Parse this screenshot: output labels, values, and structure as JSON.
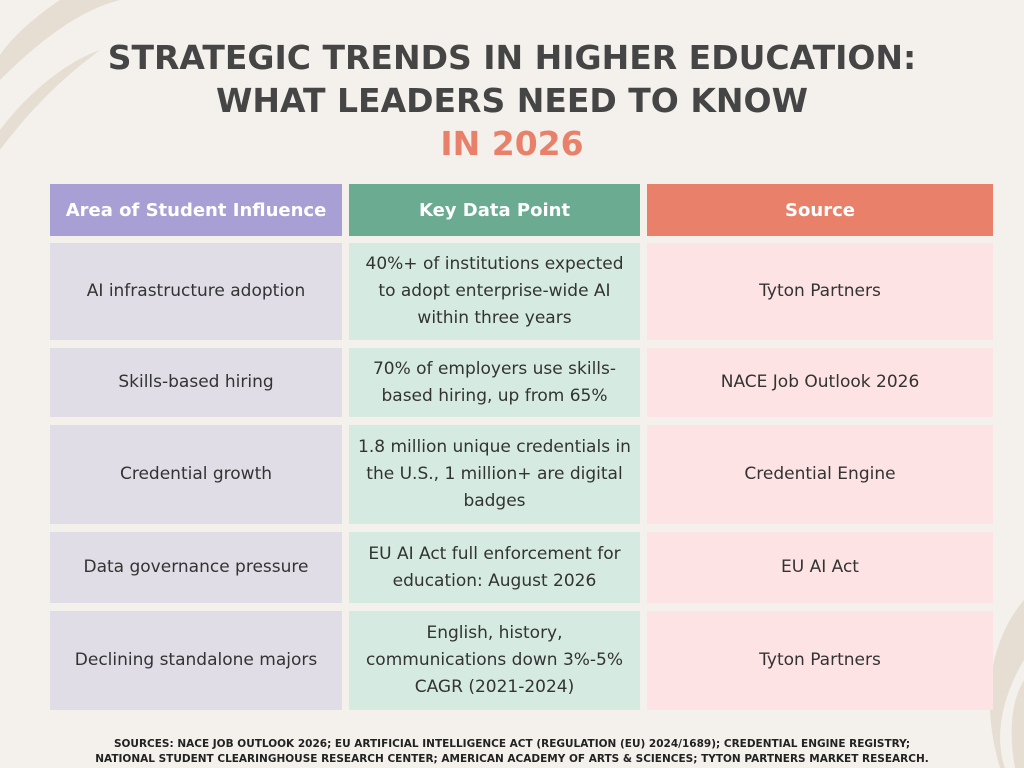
{
  "header": {
    "title_lines": [
      "STRATEGIC TRENDS IN HIGHER EDUCATION:",
      "WHAT LEADERS NEED TO KNOW"
    ],
    "highlight": "IN 2026"
  },
  "table": {
    "columns": [
      "Area of Student Influence",
      "Key Data Point",
      "Source"
    ],
    "rows": [
      [
        "AI infrastructure adoption",
        "40%+ of institutions expected to adopt enterprise-wide AI within three years",
        "Tyton Partners"
      ],
      [
        "Skills-based hiring",
        "70% of employers use skills-based hiring, up from 65%",
        "NACE Job Outlook 2026"
      ],
      [
        "Credential growth",
        "1.8 million unique credentials in the U.S., 1 million+ are digital badges",
        "Credential Engine"
      ],
      [
        "Data governance pressure",
        "EU AI Act full enforcement for education: August 2026",
        "EU AI Act"
      ],
      [
        "Declining standalone majors",
        "English, history, communications down 3%-5% CAGR (2021-2024)",
        "Tyton Partners"
      ]
    ]
  },
  "footer": {
    "sources_lines": [
      "SOURCES: NACE JOB OUTLOOK 2026; EU ARTIFICIAL INTELLIGENCE ACT (REGULATION (EU) 2024/1689); CREDENTIAL ENGINE REGISTRY;",
      "NATIONAL STUDENT CLEARINGHOUSE RESEARCH CENTER; AMERICAN ACADEMY OF ARTS & SCIENCES; TYTON PARTNERS MARKET RESEARCH."
    ]
  }
}
